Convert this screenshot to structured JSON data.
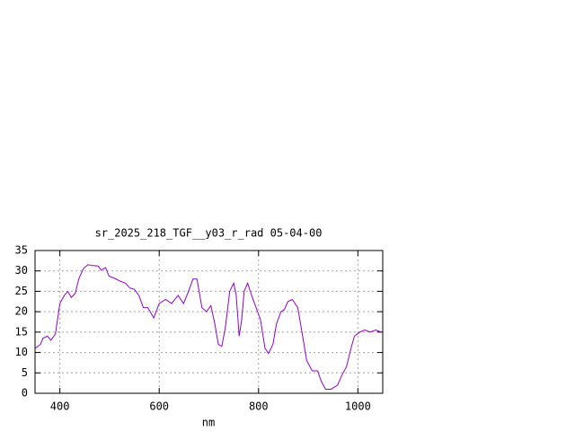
{
  "chart_data": {
    "type": "line",
    "title": "sr_2025_218_TGF__y03_r_rad 05-04-00",
    "x_label": "nm",
    "x": [
      350,
      361,
      366,
      375,
      382,
      391,
      400,
      409,
      416,
      423,
      431,
      438,
      447,
      456,
      467,
      477,
      483,
      492,
      499,
      510,
      521,
      532,
      541,
      550,
      559,
      568,
      577,
      589,
      600,
      613,
      625,
      638,
      649,
      659,
      668,
      676,
      686,
      695,
      704,
      712,
      719,
      726,
      733,
      742,
      750,
      755,
      761,
      766,
      771,
      778,
      786,
      795,
      804,
      813,
      820,
      829,
      836,
      845,
      852,
      859,
      868,
      879,
      886,
      897,
      908,
      919,
      926,
      935,
      946,
      959,
      968,
      977,
      986,
      993,
      1004,
      1014,
      1025,
      1036,
      1047
    ],
    "values": [
      11,
      12,
      13.5,
      14,
      13,
      14.5,
      22,
      24,
      25,
      23.5,
      24.5,
      28,
      30.5,
      31.5,
      31.3,
      31.2,
      30.2,
      30.8,
      28.7,
      28.2,
      27.5,
      27,
      25.8,
      25.5,
      24,
      21,
      21,
      18.5,
      22,
      23,
      22,
      24,
      22,
      25,
      28,
      28,
      21,
      20,
      21.5,
      17,
      12,
      11.5,
      16,
      25,
      27,
      24,
      14,
      18,
      25,
      27,
      24,
      21,
      18,
      11,
      9.8,
      12,
      17,
      20,
      20.5,
      22.5,
      23,
      21,
      16,
      8,
      5.5,
      5.5,
      3,
      1,
      1,
      2,
      4.5,
      6.5,
      11,
      14,
      15,
      15.5,
      15,
      15.5,
      15
    ],
    "color": "#9400d3",
    "xlim": [
      350,
      1050
    ],
    "xticks": [
      400,
      600,
      800,
      1000
    ],
    "ylim": [
      0,
      35
    ],
    "yticks": [
      0,
      5,
      10,
      15,
      20,
      25,
      30,
      35
    ],
    "grid": true
  }
}
